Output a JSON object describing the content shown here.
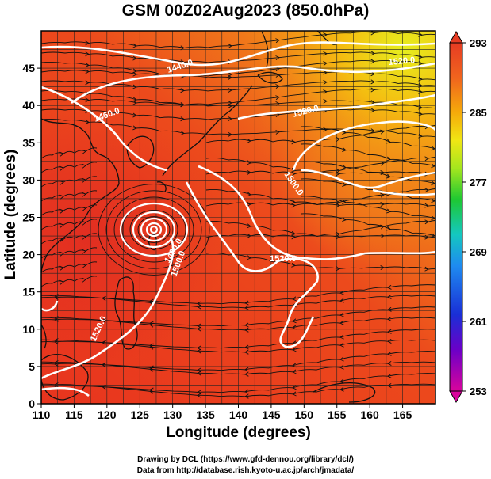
{
  "title": "GSM 00Z02Aug2023 (850.0hPa)",
  "axes": {
    "xlabel": "Longitude (degrees)",
    "ylabel": "Latitude  (degrees)",
    "xticks": [
      "110",
      "115",
      "120",
      "125",
      "130",
      "135",
      "140",
      "145",
      "150",
      "155",
      "160",
      "165"
    ],
    "yticks": [
      "0",
      "5",
      "10",
      "15",
      "20",
      "25",
      "30",
      "35",
      "40",
      "45"
    ],
    "xlim": [
      110,
      170
    ],
    "ylim": [
      0,
      50
    ]
  },
  "colorbar": {
    "min": 253,
    "max": 293,
    "ticks": [
      "293",
      "285",
      "277",
      "269",
      "261",
      "253"
    ],
    "colors": [
      "#d9049c",
      "#6a00c8",
      "#1a2fd6",
      "#1e8bf0",
      "#14c8c0",
      "#1ec832",
      "#a5e61e",
      "#f0e614",
      "#f5aa0a",
      "#f0641e",
      "#e63c23"
    ]
  },
  "contours": {
    "labels": [
      "1440.0",
      "1460.0",
      "1520.0",
      "1520.0",
      "1500.0",
      "1500.0",
      "1520.0",
      "1480.0",
      "1520.0"
    ]
  },
  "credits": {
    "line1": "Drawing by DCL (https://www.gfd-dennou.org/library/dcl/)",
    "line2": "Data from http://database.rish.kyoto-u.ac.jp/arch/jmadata/"
  }
}
